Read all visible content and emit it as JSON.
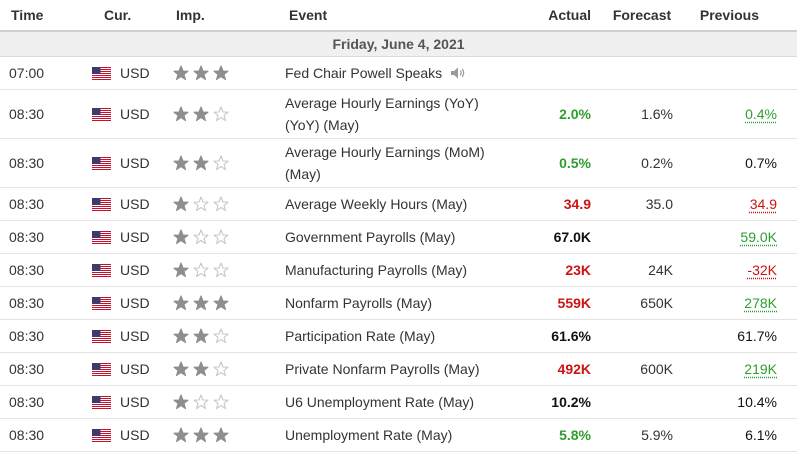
{
  "headers": {
    "time": "Time",
    "currency": "Cur.",
    "importance": "Imp.",
    "event": "Event",
    "actual": "Actual",
    "forecast": "Forecast",
    "previous": "Previous"
  },
  "date_label": "Friday, June 4, 2021",
  "colors": {
    "positive": "#2e9e2e",
    "negative": "#cc1414",
    "star_filled": "#8e8e8e",
    "star_empty": "#c8c8c8"
  },
  "rows": [
    {
      "time": "07:00",
      "currency": "USD",
      "flag_icon": "us-flag-icon",
      "stars": 3,
      "event": "Fed Chair Powell Speaks",
      "speaker": true,
      "actual": "",
      "actual_tone": "black",
      "forecast": "",
      "previous": "",
      "previous_tone": "black"
    },
    {
      "time": "08:30",
      "currency": "USD",
      "flag_icon": "us-flag-icon",
      "stars": 2,
      "event": "Average Hourly Earnings (YoY) (YoY) (May)",
      "actual": "2.0%",
      "actual_tone": "green",
      "forecast": "1.6%",
      "previous": "0.4%",
      "previous_tone": "green"
    },
    {
      "time": "08:30",
      "currency": "USD",
      "flag_icon": "us-flag-icon",
      "stars": 2,
      "event": "Average Hourly Earnings (MoM) (May)",
      "actual": "0.5%",
      "actual_tone": "green",
      "forecast": "0.2%",
      "previous": "0.7%",
      "previous_tone": "black"
    },
    {
      "time": "08:30",
      "currency": "USD",
      "flag_icon": "us-flag-icon",
      "stars": 1,
      "event": "Average Weekly Hours (May)",
      "actual": "34.9",
      "actual_tone": "red",
      "forecast": "35.0",
      "previous": "34.9",
      "previous_tone": "red"
    },
    {
      "time": "08:30",
      "currency": "USD",
      "flag_icon": "us-flag-icon",
      "stars": 1,
      "event": "Government Payrolls (May)",
      "actual": "67.0K",
      "actual_tone": "black",
      "forecast": "",
      "previous": "59.0K",
      "previous_tone": "green"
    },
    {
      "time": "08:30",
      "currency": "USD",
      "flag_icon": "us-flag-icon",
      "stars": 1,
      "event": "Manufacturing Payrolls (May)",
      "actual": "23K",
      "actual_tone": "red",
      "forecast": "24K",
      "previous": "-32K",
      "previous_tone": "red"
    },
    {
      "time": "08:30",
      "currency": "USD",
      "flag_icon": "us-flag-icon",
      "stars": 3,
      "event": "Nonfarm Payrolls (May)",
      "actual": "559K",
      "actual_tone": "red",
      "forecast": "650K",
      "previous": "278K",
      "previous_tone": "green"
    },
    {
      "time": "08:30",
      "currency": "USD",
      "flag_icon": "us-flag-icon",
      "stars": 2,
      "event": "Participation Rate (May)",
      "actual": "61.6%",
      "actual_tone": "black",
      "forecast": "",
      "previous": "61.7%",
      "previous_tone": "black"
    },
    {
      "time": "08:30",
      "currency": "USD",
      "flag_icon": "us-flag-icon",
      "stars": 2,
      "event": "Private Nonfarm Payrolls (May)",
      "actual": "492K",
      "actual_tone": "red",
      "forecast": "600K",
      "previous": "219K",
      "previous_tone": "green"
    },
    {
      "time": "08:30",
      "currency": "USD",
      "flag_icon": "us-flag-icon",
      "stars": 1,
      "event": "U6 Unemployment Rate (May)",
      "actual": "10.2%",
      "actual_tone": "black",
      "forecast": "",
      "previous": "10.4%",
      "previous_tone": "black"
    },
    {
      "time": "08:30",
      "currency": "USD",
      "flag_icon": "us-flag-icon",
      "stars": 3,
      "event": "Unemployment Rate (May)",
      "actual": "5.8%",
      "actual_tone": "green",
      "forecast": "5.9%",
      "previous": "6.1%",
      "previous_tone": "black"
    }
  ]
}
